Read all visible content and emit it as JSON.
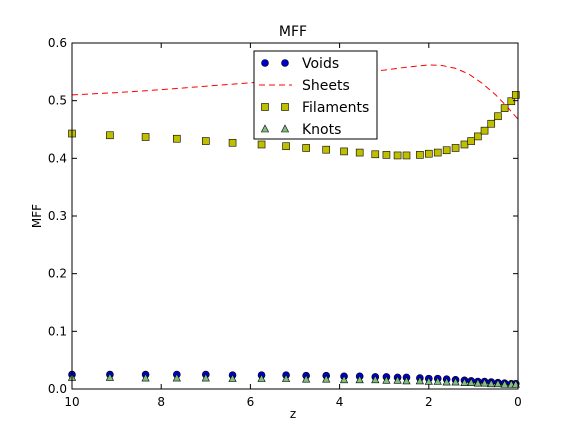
{
  "chart_data": {
    "type": "scatter",
    "title": "MFF",
    "xlabel": "z",
    "ylabel": "MFF",
    "xlim": [
      10,
      0
    ],
    "ylim": [
      0,
      0.6
    ],
    "x_reversed": true,
    "xticks": [
      10,
      8,
      6,
      4,
      2,
      0
    ],
    "yticks": [
      0.0,
      0.1,
      0.2,
      0.3,
      0.4,
      0.5,
      0.6
    ],
    "xtick_labels": [
      "10",
      "8",
      "6",
      "4",
      "2",
      "0"
    ],
    "ytick_labels": [
      "0.0",
      "0.1",
      "0.2",
      "0.3",
      "0.4",
      "0.5",
      "0.6"
    ],
    "grid": false,
    "legend_position": "upper-center",
    "series": [
      {
        "name": "Voids",
        "style": "markers-circle",
        "color": "#0000cc",
        "x": [
          10.0,
          9.15,
          8.35,
          7.65,
          7.0,
          6.4,
          5.75,
          5.2,
          4.75,
          4.3,
          3.9,
          3.55,
          3.2,
          2.95,
          2.7,
          2.5,
          2.2,
          2.0,
          1.8,
          1.6,
          1.4,
          1.2,
          1.05,
          0.9,
          0.75,
          0.6,
          0.45,
          0.3,
          0.15,
          0.05
        ],
        "y": [
          0.025,
          0.025,
          0.025,
          0.025,
          0.025,
          0.024,
          0.024,
          0.024,
          0.023,
          0.023,
          0.022,
          0.022,
          0.021,
          0.021,
          0.02,
          0.02,
          0.019,
          0.018,
          0.018,
          0.017,
          0.016,
          0.015,
          0.014,
          0.013,
          0.013,
          0.012,
          0.011,
          0.01,
          0.009,
          0.009
        ]
      },
      {
        "name": "Sheets",
        "style": "dashed-line",
        "color": "#ff0000",
        "x": [
          10.0,
          9.0,
          8.0,
          7.0,
          6.0,
          5.0,
          4.0,
          3.0,
          2.5,
          2.0,
          1.7,
          1.4,
          1.1,
          0.8,
          0.5,
          0.25,
          0.0
        ],
        "y": [
          0.51,
          0.514,
          0.519,
          0.525,
          0.531,
          0.538,
          0.545,
          0.553,
          0.558,
          0.562,
          0.561,
          0.556,
          0.546,
          0.53,
          0.51,
          0.49,
          0.468
        ]
      },
      {
        "name": "Filaments",
        "style": "markers-square",
        "color": "#bfbf00",
        "x": [
          10.0,
          9.15,
          8.35,
          7.65,
          7.0,
          6.4,
          5.75,
          5.2,
          4.75,
          4.3,
          3.9,
          3.55,
          3.2,
          2.95,
          2.7,
          2.5,
          2.2,
          2.0,
          1.8,
          1.6,
          1.4,
          1.2,
          1.05,
          0.9,
          0.75,
          0.6,
          0.45,
          0.3,
          0.15,
          0.05
        ],
        "y": [
          0.443,
          0.44,
          0.437,
          0.434,
          0.43,
          0.427,
          0.424,
          0.421,
          0.418,
          0.415,
          0.412,
          0.41,
          0.407,
          0.406,
          0.405,
          0.405,
          0.406,
          0.408,
          0.41,
          0.414,
          0.418,
          0.424,
          0.43,
          0.438,
          0.448,
          0.46,
          0.473,
          0.487,
          0.499,
          0.51
        ]
      },
      {
        "name": "Knots",
        "style": "markers-triangle",
        "color": "#7fbf7f",
        "x": [
          10.0,
          9.15,
          8.35,
          7.65,
          7.0,
          6.4,
          5.75,
          5.2,
          4.75,
          4.3,
          3.9,
          3.55,
          3.2,
          2.95,
          2.7,
          2.5,
          2.2,
          2.0,
          1.8,
          1.6,
          1.4,
          1.2,
          1.05,
          0.9,
          0.75,
          0.6,
          0.45,
          0.3,
          0.15,
          0.05
        ],
        "y": [
          0.02,
          0.02,
          0.019,
          0.019,
          0.019,
          0.018,
          0.018,
          0.018,
          0.017,
          0.017,
          0.016,
          0.016,
          0.016,
          0.015,
          0.015,
          0.014,
          0.014,
          0.013,
          0.013,
          0.012,
          0.012,
          0.011,
          0.011,
          0.01,
          0.01,
          0.009,
          0.009,
          0.008,
          0.008,
          0.008
        ]
      }
    ]
  }
}
